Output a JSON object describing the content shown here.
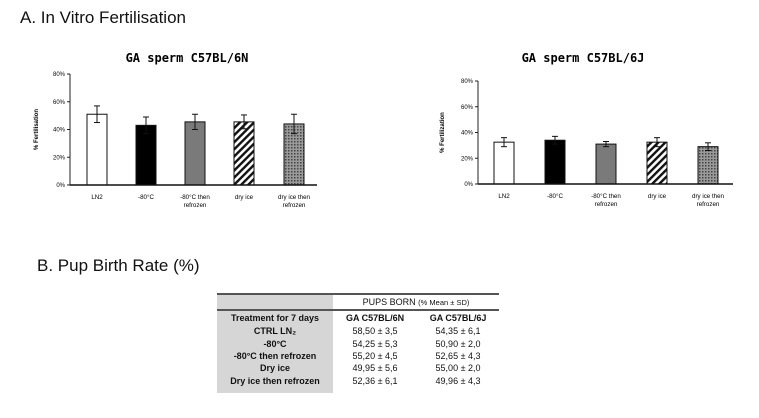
{
  "section_a_title": "A. In Vitro Fertilisation",
  "section_b_title": "B. Pup Birth Rate (%)",
  "chart_data": [
    {
      "type": "bar",
      "title": "GA sperm C57BL/6N",
      "ylabel": "% Fertilisation",
      "xlabel": "",
      "ylim": [
        0,
        80
      ],
      "yticks": [
        "0%",
        "20%",
        "40%",
        "60%",
        "80%"
      ],
      "categories": [
        [
          "LN2"
        ],
        [
          "-80°C"
        ],
        [
          "-80°C then",
          "refrozen"
        ],
        [
          "dry ice"
        ],
        [
          "dry ice then",
          "refrozen"
        ]
      ],
      "values": [
        51,
        43,
        45.5,
        45.5,
        44
      ],
      "errors": [
        6,
        6,
        5.5,
        5,
        7
      ],
      "fills": [
        "white",
        "black",
        "gray",
        "hatch",
        "dots"
      ],
      "grid": false
    },
    {
      "type": "bar",
      "title": "GA sperm C57BL/6J",
      "ylabel": "% Fertilization",
      "xlabel": "",
      "ylim": [
        0,
        80
      ],
      "yticks": [
        "0%",
        "20%",
        "40%",
        "60%",
        "80%"
      ],
      "categories": [
        [
          "LN2"
        ],
        [
          "-80°C"
        ],
        [
          "-80°C then",
          "refrozen"
        ],
        [
          "dry ice"
        ],
        [
          "dry ice then",
          "refrozen"
        ]
      ],
      "values": [
        32.5,
        34,
        31,
        32.5,
        29
      ],
      "errors": [
        3.5,
        3,
        2,
        3.5,
        3
      ],
      "fills": [
        "white",
        "black",
        "gray",
        "hatch",
        "dots"
      ],
      "grid": false
    }
  ],
  "table": {
    "group_header": "PUPS BORN",
    "group_header_unit": "(% Mean ± SD)",
    "row_header": "Treatment for 7 days",
    "columns": [
      "GA C57BL/6N",
      "GA C57BL/6J"
    ],
    "rows": [
      {
        "label": "CTRL LN₂",
        "values": [
          "58,50 ± 3,5",
          "54,35 ± 6,1"
        ]
      },
      {
        "label": "-80°C",
        "values": [
          "54,25 ± 5,3",
          "50,90 ± 2,0"
        ]
      },
      {
        "label": "-80°C then refrozen",
        "values": [
          "55,20 ± 4,5",
          "52,65 ± 4,3"
        ]
      },
      {
        "label": "Dry ice",
        "values": [
          "49,95 ± 5,6",
          "55,00 ± 2,0"
        ]
      },
      {
        "label": "Dry ice then refrozen",
        "values": [
          "52,36 ± 6,1",
          "49,96 ± 4,3"
        ]
      }
    ]
  }
}
